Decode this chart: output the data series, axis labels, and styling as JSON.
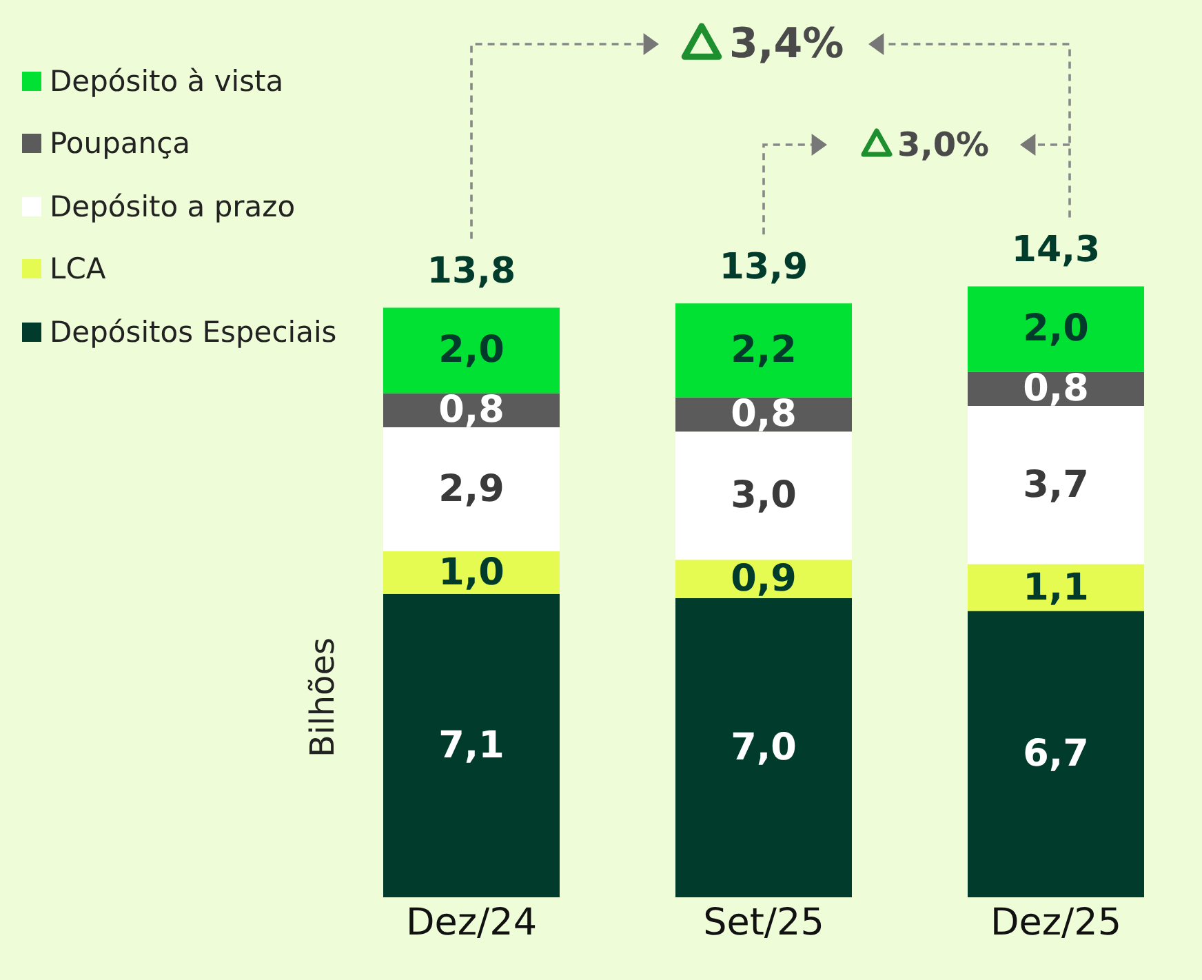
{
  "chart_data": {
    "type": "bar",
    "stacked": true,
    "ylabel": "Bilhões",
    "categories": [
      "Dez/24",
      "Set/25",
      "Dez/25"
    ],
    "series": [
      {
        "name": "Depósitos Especiais",
        "color": "#003b2c",
        "values": [
          7.1,
          7.0,
          6.7
        ],
        "value_labels": [
          "7,1",
          "7,0",
          "6,7"
        ]
      },
      {
        "name": "LCA",
        "color": "#e6fb52",
        "values": [
          1.0,
          0.9,
          1.1
        ],
        "value_labels": [
          "1,0",
          "0,9",
          "1,1"
        ]
      },
      {
        "name": "Depósito a prazo",
        "color": "#ffffff",
        "values": [
          2.9,
          3.0,
          3.7
        ],
        "value_labels": [
          "2,9",
          "3,0",
          "3,7"
        ]
      },
      {
        "name": "Poupança",
        "color": "#5b5b5b",
        "values": [
          0.8,
          0.8,
          0.8
        ],
        "value_labels": [
          "0,8",
          "0,8",
          "0,8"
        ]
      },
      {
        "name": "Depósito à vista",
        "color": "#00e134",
        "values": [
          2.0,
          2.2,
          2.0
        ],
        "value_labels": [
          "2,0",
          "2,2",
          "2,0"
        ]
      }
    ],
    "totals": [
      "13,8",
      "13,9",
      "14,3"
    ],
    "annotations": [
      "3,4%",
      "3,0%"
    ],
    "legend": "top left",
    "grid": false
  }
}
